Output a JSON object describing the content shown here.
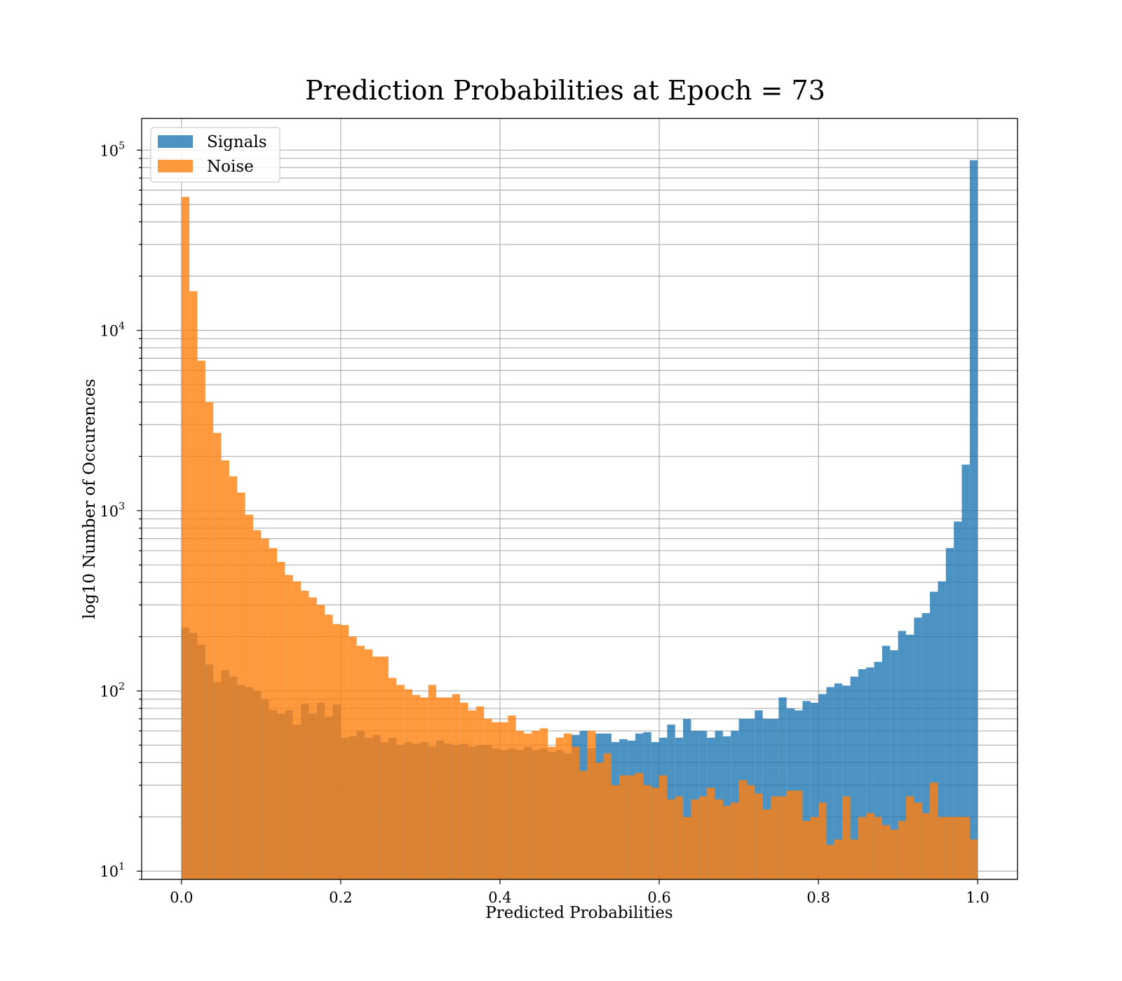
{
  "chart_data": {
    "type": "bar",
    "title": "Prediction Probabilities at Epoch = 73",
    "xlabel": "Predicted Probabilities",
    "ylabel": "log10 Number of Occurences",
    "xlim": [
      -0.05,
      1.05
    ],
    "ylim": [
      9.0,
      150000
    ],
    "yscale": "log",
    "grid": true,
    "legend_position": "top-left",
    "x_ticks": [
      "0.0",
      "0.2",
      "0.4",
      "0.6",
      "0.8",
      "1.0"
    ],
    "y_ticks": [
      {
        "base": "10",
        "exp": "1"
      },
      {
        "base": "10",
        "exp": "2"
      },
      {
        "base": "10",
        "exp": "3"
      },
      {
        "base": "10",
        "exp": "4"
      },
      {
        "base": "10",
        "exp": "5"
      }
    ],
    "bin_start": 0.0,
    "bin_width": 0.01,
    "series": [
      {
        "name": "Signals",
        "color": "#1f77b4",
        "opacity": 0.8,
        "values": [
          225,
          210,
          180,
          140,
          112,
          130,
          120,
          108,
          105,
          100,
          90,
          78,
          75,
          78,
          65,
          85,
          75,
          86,
          72,
          84,
          55,
          56,
          60,
          55,
          57,
          52,
          55,
          50,
          52,
          51,
          52,
          49,
          53,
          51,
          50,
          51,
          49,
          50,
          50,
          48,
          47,
          48,
          47,
          49,
          47,
          48,
          46,
          47,
          45,
          57,
          60,
          48,
          58,
          58,
          52,
          54,
          53,
          58,
          59,
          52,
          55,
          65,
          55,
          70,
          60,
          60,
          55,
          60,
          56,
          60,
          70,
          70,
          78,
          70,
          70,
          92,
          80,
          78,
          88,
          86,
          96,
          105,
          110,
          107,
          120,
          132,
          135,
          145,
          178,
          168,
          215,
          205,
          255,
          270,
          355,
          405,
          620,
          870,
          1800,
          88000
        ]
      },
      {
        "name": "Noise",
        "color": "#ff7f0e",
        "opacity": 0.8,
        "values": [
          55000,
          16500,
          6800,
          4000,
          2700,
          1900,
          1550,
          1260,
          950,
          780,
          700,
          620,
          520,
          440,
          405,
          360,
          330,
          300,
          265,
          235,
          232,
          200,
          178,
          170,
          155,
          155,
          118,
          108,
          102,
          95,
          92,
          108,
          92,
          92,
          96,
          86,
          78,
          82,
          70,
          67,
          67,
          73,
          60,
          58,
          60,
          62,
          49,
          55,
          58,
          49,
          36,
          60,
          40,
          45,
          30,
          34,
          34,
          35,
          30,
          29,
          34,
          25,
          26,
          20,
          25,
          26,
          29,
          25,
          23,
          24,
          32,
          30,
          27,
          22,
          26,
          26,
          28,
          28,
          19,
          20,
          24,
          14,
          15,
          26,
          15,
          20,
          21,
          20,
          18,
          17,
          19,
          26,
          24,
          21,
          31,
          20,
          20,
          20,
          20,
          15
        ]
      }
    ]
  }
}
